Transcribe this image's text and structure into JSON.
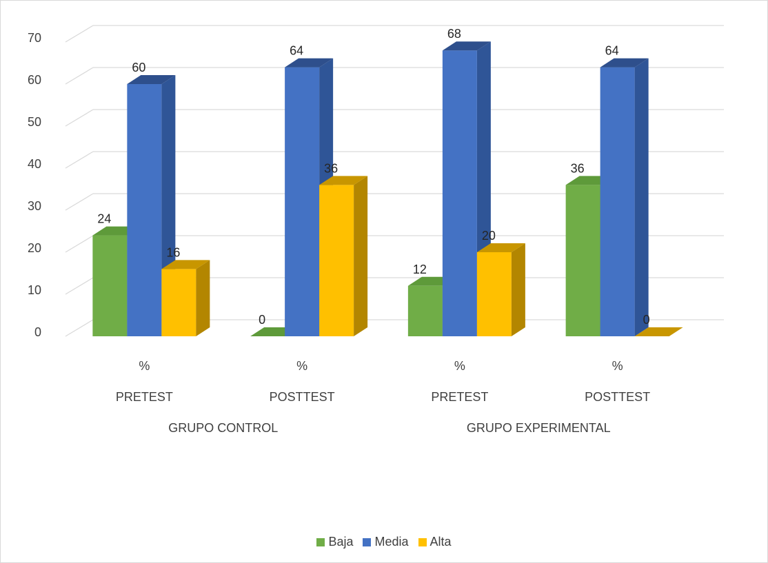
{
  "chart_data": {
    "type": "bar",
    "three_d": true,
    "categories": [
      {
        "label": "%",
        "subgroup": "PRETEST",
        "group": "GRUPO CONTROL"
      },
      {
        "label": "%",
        "subgroup": "POSTTEST",
        "group": "GRUPO CONTROL"
      },
      {
        "label": "%",
        "subgroup": "PRETEST",
        "group": "GRUPO EXPERIMENTAL"
      },
      {
        "label": "%",
        "subgroup": "POSTTEST",
        "group": "GRUPO EXPERIMENTAL"
      }
    ],
    "groups": [
      "GRUPO CONTROL",
      "GRUPO EXPERIMENTAL"
    ],
    "series": [
      {
        "name": "Baja",
        "values": [
          24,
          0,
          12,
          36
        ],
        "color": "#70ad47",
        "side_color": "#507e32",
        "top_color": "#5e9a3a"
      },
      {
        "name": "Media",
        "values": [
          60,
          64,
          68,
          64
        ],
        "color": "#4472c4",
        "side_color": "#2f5597",
        "top_color": "#2e4f8c"
      },
      {
        "name": "Alta",
        "values": [
          16,
          36,
          20,
          0
        ],
        "color": "#ffc000",
        "side_color": "#b38600",
        "top_color": "#c89600"
      }
    ],
    "data_labels": true,
    "ylim": [
      0,
      70
    ],
    "yticks": [
      0,
      10,
      20,
      30,
      40,
      50,
      60,
      70
    ],
    "yticks_labels": [
      "0",
      "10",
      "20",
      "30",
      "40",
      "50",
      "60",
      "70"
    ],
    "grid": true,
    "legend": "bottom",
    "title": "",
    "xlabel": "",
    "ylabel": ""
  }
}
